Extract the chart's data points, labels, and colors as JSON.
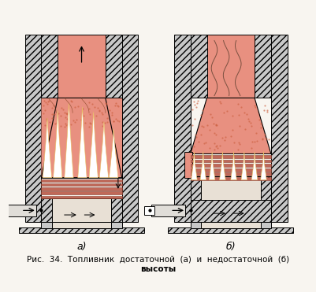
{
  "bg_color": "#f8f5f0",
  "hatch_fill": "#c8c8c8",
  "firebox_fill": "#e89080",
  "grate_fill": "#c06858",
  "ashpit_fill": "#e8e0d5",
  "pipe_fill": "#e0ddd8",
  "label_a": "а)",
  "label_b": "б)",
  "caption_line1": "Рис.  34.  Топливник  достаточной  (а)  и  недостаточной  (б)",
  "caption_line2": "высоты",
  "fig_width": 4.02,
  "fig_height": 3.71,
  "dpi": 100
}
